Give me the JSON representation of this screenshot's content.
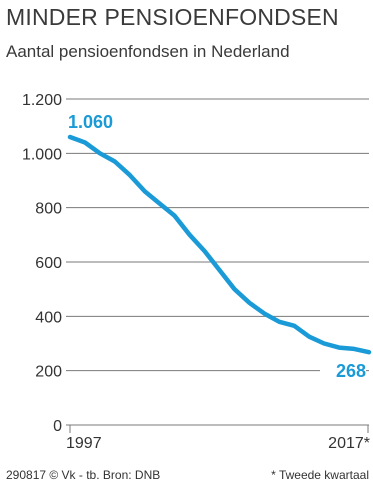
{
  "header": {
    "title": "MINDER PENSIOENFONDSEN",
    "subtitle": "Aantal pensioenfondsen in Nederland"
  },
  "footer": {
    "credit": "290817 © Vk - tb. Bron: DNB",
    "note": "* Tweede kwartaal"
  },
  "colors": {
    "line": "#1a9ad6",
    "grid": "#7a7a7a",
    "text": "#333333"
  },
  "chart_data": {
    "type": "line",
    "title": "MINDER PENSIOENFONDSEN",
    "subtitle": "Aantal pensioenfondsen in Nederland",
    "xlabel": "",
    "ylabel": "",
    "xlim": [
      1997,
      2017
    ],
    "ylim": [
      0,
      1200
    ],
    "yticks": [
      0,
      200,
      400,
      600,
      800,
      1000,
      1200
    ],
    "ytick_labels": [
      "0",
      "200",
      "400",
      "600",
      "800",
      "1.000",
      "1.200"
    ],
    "xtick_labels": [
      "1997",
      "2017*"
    ],
    "grid": true,
    "series": [
      {
        "x": [
          1997,
          1998,
          1999,
          2000,
          2001,
          2002,
          2003,
          2004,
          2005,
          2006,
          2007,
          2008,
          2009,
          2010,
          2011,
          2012,
          2013,
          2014,
          2015,
          2016,
          2017
        ],
        "values": [
          1060,
          1040,
          1000,
          970,
          920,
          860,
          815,
          770,
          700,
          640,
          570,
          500,
          450,
          410,
          380,
          365,
          325,
          300,
          285,
          280,
          268
        ]
      }
    ],
    "annotations": [
      {
        "label": "1.060",
        "x": 1997,
        "y": 1060
      },
      {
        "label": "268",
        "x": 2017,
        "y": 268
      }
    ]
  }
}
